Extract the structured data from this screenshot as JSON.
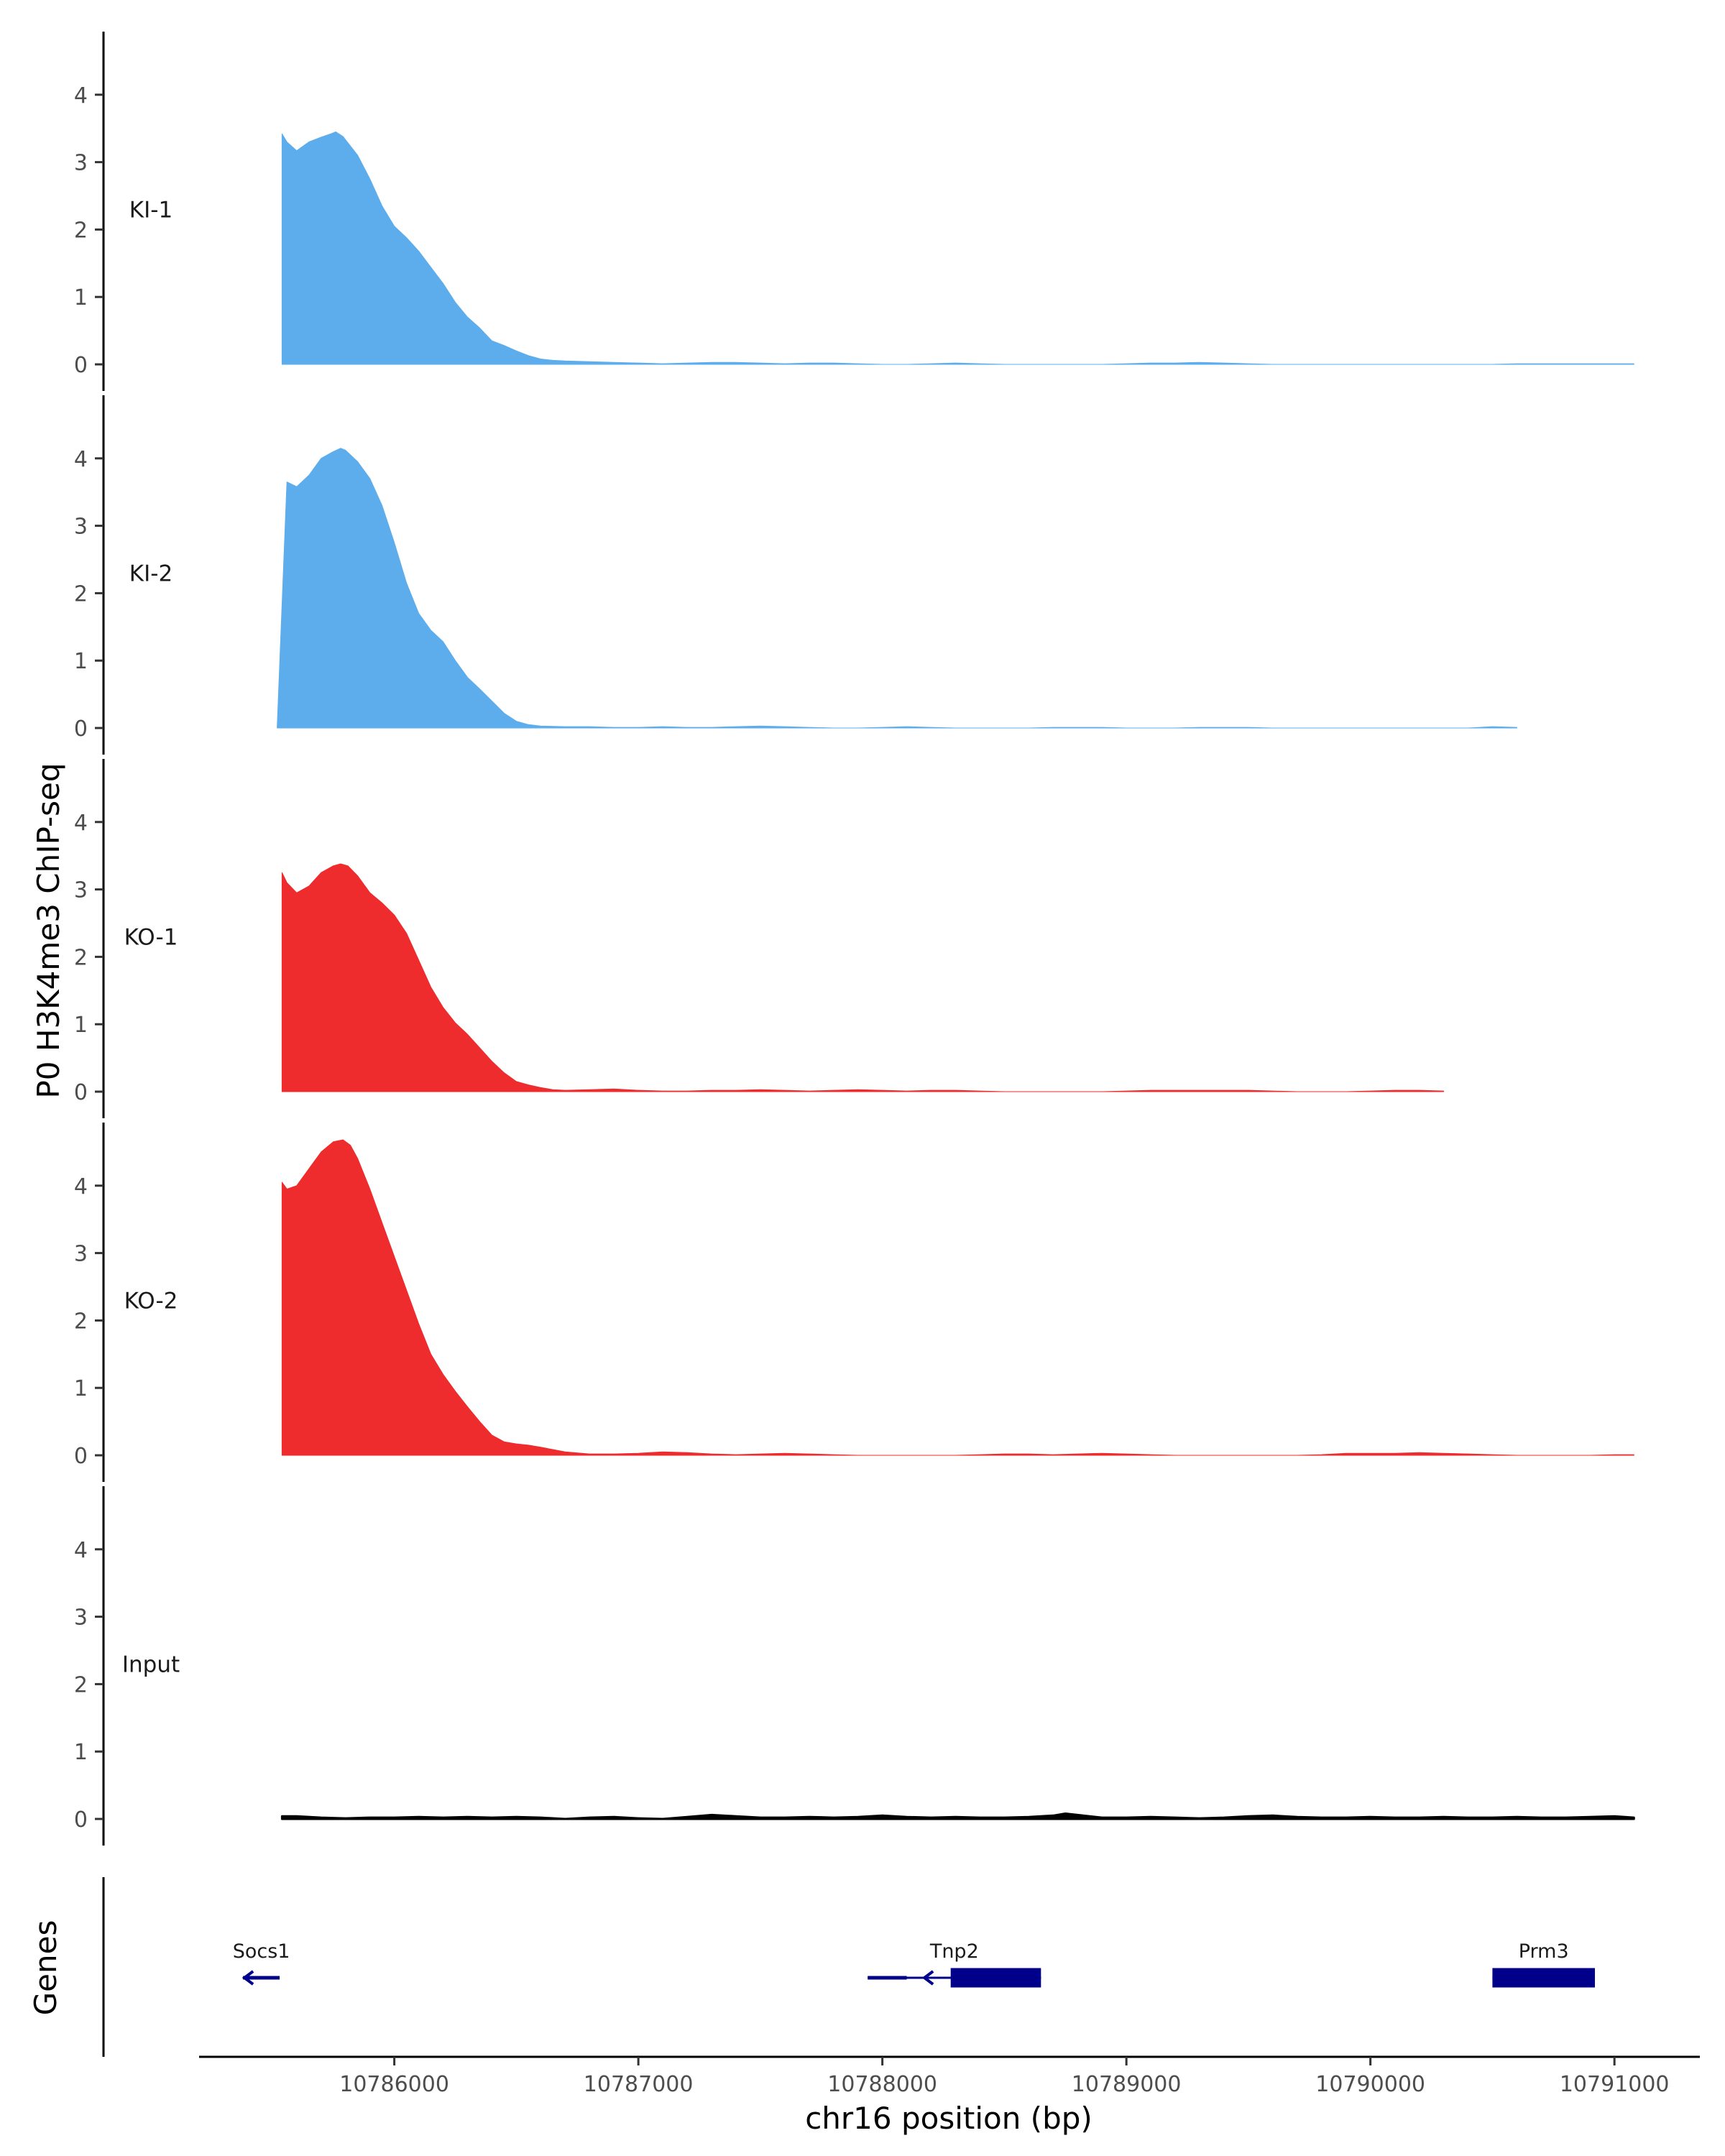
{
  "chart_data": {
    "type": "area",
    "xlabel": "chr16 position (bp)",
    "ylabel": "P0 H3K4me3 ChIP-seq",
    "gene_track_label": "Genes",
    "xlim": [
      10785200,
      10791350
    ],
    "x_ticks": [
      10786000,
      10787000,
      10788000,
      10789000,
      10790000,
      10791000
    ],
    "x_tick_labels": [
      "10786000",
      "10787000",
      "10788000",
      "10789000",
      "10790000",
      "10791000"
    ],
    "ylim": [
      0,
      4.9
    ],
    "y_ticks": [
      0,
      1,
      2,
      3,
      4
    ],
    "y_tick_labels": [
      "0",
      "1",
      "2",
      "3",
      "4"
    ],
    "grid": false,
    "series": [
      {
        "name": "KI-1",
        "color": "#5dadec",
        "x": [
          10785540,
          10785560,
          10785600,
          10785650,
          10785700,
          10785740,
          10785760,
          10785790,
          10785850,
          10785900,
          10785950,
          10786000,
          10786050,
          10786100,
          10786150,
          10786200,
          10786250,
          10786300,
          10786350,
          10786400,
          10786450,
          10786500,
          10786550,
          10786600,
          10786650,
          10786700,
          10786800,
          10786900,
          10787000,
          10787100,
          10787200,
          10787300,
          10787400,
          10787500,
          10787600,
          10787700,
          10787800,
          10787900,
          10788000,
          10788100,
          10788200,
          10788300,
          10788400,
          10788500,
          10788600,
          10788700,
          10788800,
          10788900,
          10789000,
          10789100,
          10789200,
          10789300,
          10789400,
          10789500,
          10789600,
          10789700,
          10789800,
          10789900,
          10790000,
          10790100,
          10790200,
          10790300,
          10790400,
          10790500,
          10790600,
          10790700,
          10790800,
          10790900,
          10791000,
          10791080
        ],
        "values": [
          3.42,
          3.3,
          3.17,
          3.3,
          3.37,
          3.42,
          3.45,
          3.38,
          3.1,
          2.75,
          2.35,
          2.05,
          1.88,
          1.68,
          1.44,
          1.2,
          0.92,
          0.7,
          0.54,
          0.35,
          0.28,
          0.2,
          0.13,
          0.08,
          0.06,
          0.05,
          0.04,
          0.03,
          0.02,
          0.01,
          0.02,
          0.03,
          0.03,
          0.02,
          0.01,
          0.02,
          0.02,
          0.01,
          0.0,
          0.0,
          0.01,
          0.02,
          0.01,
          0.0,
          0.0,
          0.0,
          0.0,
          0.0,
          0.01,
          0.02,
          0.02,
          0.03,
          0.02,
          0.01,
          0.0,
          0.0,
          0.0,
          0.0,
          0.0,
          0.0,
          0.0,
          0.0,
          0.0,
          0.0,
          0.01,
          0.01,
          0.01,
          0.01,
          0.01,
          0.01
        ]
      },
      {
        "name": "KI-2",
        "color": "#5dadec",
        "x": [
          10785520,
          10785560,
          10785600,
          10785650,
          10785700,
          10785750,
          10785780,
          10785800,
          10785850,
          10785900,
          10785950,
          10786000,
          10786050,
          10786100,
          10786150,
          10786200,
          10786250,
          10786300,
          10786350,
          10786400,
          10786450,
          10786500,
          10786550,
          10786600,
          10786700,
          10786800,
          10786900,
          10787000,
          10787100,
          10787200,
          10787300,
          10787400,
          10787500,
          10787600,
          10787700,
          10787800,
          10787900,
          10788000,
          10788100,
          10788200,
          10788300,
          10788400,
          10788500,
          10788600,
          10788700,
          10788800,
          10788900,
          10789000,
          10789100,
          10789200,
          10789300,
          10789400,
          10789500,
          10789600,
          10789700,
          10789800,
          10789900,
          10790000,
          10790100,
          10790200,
          10790300,
          10790400,
          10790500,
          10790600
        ],
        "values": [
          0.0,
          3.65,
          3.58,
          3.75,
          4.0,
          4.1,
          4.15,
          4.12,
          3.95,
          3.7,
          3.3,
          2.75,
          2.15,
          1.7,
          1.45,
          1.28,
          1.0,
          0.75,
          0.58,
          0.4,
          0.22,
          0.1,
          0.05,
          0.03,
          0.02,
          0.02,
          0.01,
          0.01,
          0.02,
          0.01,
          0.01,
          0.02,
          0.03,
          0.02,
          0.01,
          0.0,
          0.0,
          0.01,
          0.02,
          0.01,
          0.0,
          0.0,
          0.0,
          0.0,
          0.01,
          0.01,
          0.01,
          0.0,
          0.0,
          0.0,
          0.01,
          0.01,
          0.01,
          0.0,
          0.0,
          0.0,
          0.0,
          0.0,
          0.0,
          0.0,
          0.0,
          0.0,
          0.02,
          0.01
        ]
      },
      {
        "name": "KO-1",
        "color": "#ee2b2d",
        "x": [
          10785540,
          10785560,
          10785600,
          10785650,
          10785700,
          10785750,
          10785780,
          10785810,
          10785850,
          10785900,
          10785950,
          10786000,
          10786050,
          10786100,
          10786150,
          10786200,
          10786250,
          10786300,
          10786350,
          10786400,
          10786450,
          10786500,
          10786550,
          10786600,
          10786650,
          10786700,
          10786800,
          10786900,
          10787000,
          10787100,
          10787200,
          10787300,
          10787400,
          10787500,
          10787600,
          10787700,
          10787800,
          10787900,
          10788000,
          10788100,
          10788200,
          10788300,
          10788400,
          10788500,
          10788600,
          10788700,
          10788800,
          10788900,
          10789000,
          10789100,
          10789200,
          10789300,
          10789400,
          10789500,
          10789600,
          10789700,
          10789800,
          10789900,
          10790000,
          10790100,
          10790200,
          10790300
        ],
        "values": [
          3.25,
          3.1,
          2.95,
          3.05,
          3.25,
          3.35,
          3.38,
          3.35,
          3.2,
          2.95,
          2.8,
          2.62,
          2.35,
          1.95,
          1.55,
          1.25,
          1.02,
          0.85,
          0.65,
          0.45,
          0.28,
          0.15,
          0.1,
          0.06,
          0.03,
          0.02,
          0.03,
          0.04,
          0.02,
          0.01,
          0.01,
          0.02,
          0.02,
          0.03,
          0.02,
          0.01,
          0.02,
          0.03,
          0.02,
          0.01,
          0.02,
          0.02,
          0.01,
          0.0,
          0.0,
          0.0,
          0.0,
          0.0,
          0.01,
          0.02,
          0.02,
          0.02,
          0.02,
          0.02,
          0.01,
          0.0,
          0.0,
          0.0,
          0.01,
          0.02,
          0.02,
          0.01
        ]
      },
      {
        "name": "KO-2",
        "color": "#ee2b2d",
        "x": [
          10785540,
          10785560,
          10785600,
          10785650,
          10785700,
          10785750,
          10785790,
          10785820,
          10785850,
          10785900,
          10785950,
          10786000,
          10786050,
          10786100,
          10786150,
          10786200,
          10786250,
          10786300,
          10786350,
          10786400,
          10786450,
          10786500,
          10786550,
          10786600,
          10786700,
          10786800,
          10786900,
          10787000,
          10787100,
          10787200,
          10787300,
          10787400,
          10787500,
          10787600,
          10787700,
          10787800,
          10787900,
          10788000,
          10788100,
          10788200,
          10788300,
          10788400,
          10788500,
          10788600,
          10788700,
          10788800,
          10788900,
          10789000,
          10789100,
          10789200,
          10789300,
          10789400,
          10789500,
          10789600,
          10789700,
          10789800,
          10789900,
          10790000,
          10790100,
          10790200,
          10790300,
          10790400,
          10790500,
          10790600,
          10790700,
          10790800,
          10790900,
          10791000,
          10791080
        ],
        "values": [
          4.05,
          3.95,
          4.0,
          4.25,
          4.5,
          4.65,
          4.68,
          4.6,
          4.4,
          3.95,
          3.45,
          2.95,
          2.45,
          1.95,
          1.5,
          1.2,
          0.95,
          0.72,
          0.5,
          0.3,
          0.2,
          0.17,
          0.15,
          0.12,
          0.05,
          0.02,
          0.02,
          0.03,
          0.05,
          0.04,
          0.02,
          0.01,
          0.02,
          0.03,
          0.02,
          0.01,
          0.0,
          0.0,
          0.0,
          0.0,
          0.0,
          0.01,
          0.02,
          0.02,
          0.01,
          0.02,
          0.03,
          0.02,
          0.01,
          0.0,
          0.0,
          0.0,
          0.0,
          0.0,
          0.0,
          0.01,
          0.03,
          0.03,
          0.03,
          0.04,
          0.03,
          0.02,
          0.01,
          0.0,
          0.0,
          0.0,
          0.0,
          0.01,
          0.01
        ]
      },
      {
        "name": "Input",
        "color": "#000000",
        "x": [
          10785540,
          10785600,
          10785700,
          10785800,
          10785900,
          10786000,
          10786100,
          10786200,
          10786300,
          10786400,
          10786500,
          10786600,
          10786700,
          10786800,
          10786900,
          10787000,
          10787100,
          10787200,
          10787300,
          10787400,
          10787500,
          10787600,
          10787700,
          10787800,
          10787900,
          10788000,
          10788100,
          10788200,
          10788300,
          10788400,
          10788500,
          10788600,
          10788700,
          10788750,
          10788800,
          10788900,
          10789000,
          10789100,
          10789200,
          10789300,
          10789400,
          10789500,
          10789600,
          10789700,
          10789800,
          10789900,
          10790000,
          10790100,
          10790200,
          10790300,
          10790400,
          10790500,
          10790600,
          10790700,
          10790800,
          10790900,
          10791000,
          10791080
        ],
        "values": [
          0.04,
          0.04,
          0.02,
          0.01,
          0.02,
          0.02,
          0.03,
          0.02,
          0.03,
          0.02,
          0.03,
          0.02,
          0.0,
          0.02,
          0.03,
          0.01,
          0.0,
          0.03,
          0.06,
          0.04,
          0.02,
          0.02,
          0.03,
          0.02,
          0.03,
          0.05,
          0.03,
          0.02,
          0.03,
          0.02,
          0.02,
          0.03,
          0.05,
          0.08,
          0.06,
          0.02,
          0.02,
          0.03,
          0.02,
          0.01,
          0.02,
          0.04,
          0.05,
          0.03,
          0.02,
          0.02,
          0.03,
          0.02,
          0.02,
          0.03,
          0.02,
          0.02,
          0.03,
          0.02,
          0.02,
          0.03,
          0.04,
          0.02
        ]
      }
    ],
    "genes": [
      {
        "name": "Socs1",
        "strand": "-",
        "exons": [
          [
            10785380,
            10785530
          ]
        ]
      },
      {
        "name": "Tnp2",
        "strand": "-",
        "exons": [
          [
            10787940,
            10788100
          ],
          [
            10788280,
            10788650
          ]
        ]
      },
      {
        "name": "Prm3",
        "strand": "-",
        "exons": [
          [
            10790500,
            10790920
          ]
        ]
      }
    ],
    "gene_color": "#00008b"
  }
}
